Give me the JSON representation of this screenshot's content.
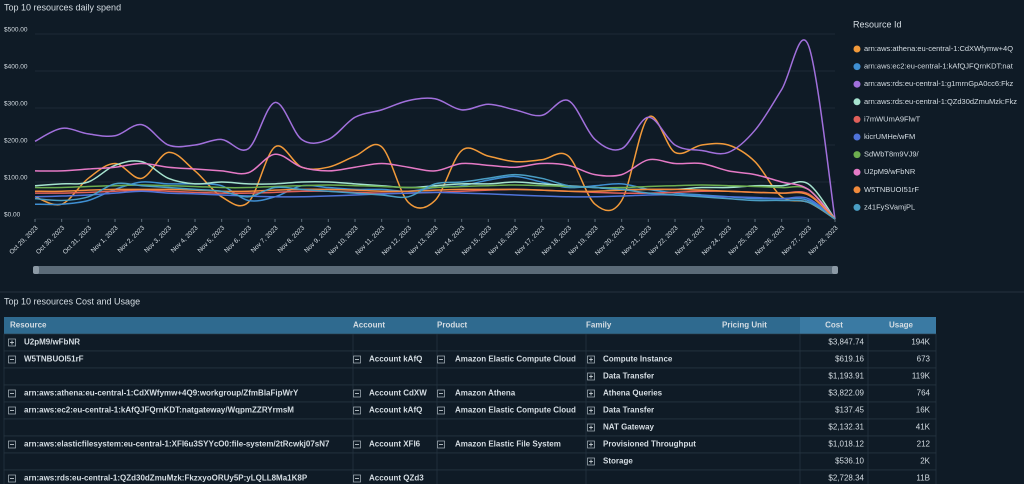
{
  "chart_data": {
    "type": "line",
    "title": "Top 10 resources daily spend",
    "legend_title": "Resource Id",
    "legend": "right",
    "categories": [
      "Oct 29, 2023",
      "Oct 30, 2023",
      "Oct 31, 2023",
      "Nov 1, 2023",
      "Nov 2, 2023",
      "Nov 3, 2023",
      "Nov 4, 2023",
      "Nov 5, 2023",
      "Nov 6, 2023",
      "Nov 7, 2023",
      "Nov 8, 2023",
      "Nov 9, 2023",
      "Nov 10, 2023",
      "Nov 11, 2023",
      "Nov 12, 2023",
      "Nov 13, 2023",
      "Nov 14, 2023",
      "Nov 15, 2023",
      "Nov 16, 2023",
      "Nov 17, 2023",
      "Nov 18, 2023",
      "Nov 19, 2023",
      "Nov 20, 2023",
      "Nov 21, 2023",
      "Nov 22, 2023",
      "Nov 23, 2023",
      "Nov 24, 2023",
      "Nov 25, 2023",
      "Nov 26, 2023",
      "Nov 27, 2023",
      "Nov 28, 2023"
    ],
    "ylim": [
      0,
      500
    ],
    "yticks": [
      {
        "value": 0,
        "label": "$0.00"
      },
      {
        "value": 100,
        "label": "$100.00"
      },
      {
        "value": 200,
        "label": "$200.00"
      },
      {
        "value": 300,
        "label": "$300.00"
      },
      {
        "value": 400,
        "label": "$400.00"
      },
      {
        "value": 500,
        "label": "$500.00"
      }
    ],
    "grid": true,
    "series": [
      {
        "name": "arn:aws:athena:eu-central-1:CdXWfymw+4Q",
        "color": "#f29a3a",
        "values": [
          60,
          40,
          110,
          150,
          110,
          180,
          130,
          60,
          45,
          195,
          140,
          140,
          170,
          195,
          45,
          50,
          185,
          170,
          155,
          160,
          170,
          40,
          50,
          275,
          180,
          200,
          200,
          155,
          60,
          45,
          0
        ]
      },
      {
        "name": "arn:aws:ec2:eu-central-1:kAfQJFQrnKDT:nat",
        "color": "#3f8fd2",
        "values": [
          40,
          40,
          50,
          80,
          100,
          95,
          95,
          90,
          50,
          60,
          90,
          85,
          80,
          80,
          75,
          85,
          90,
          105,
          115,
          100,
          85,
          90,
          95,
          80,
          70,
          65,
          60,
          55,
          55,
          50,
          0
        ]
      },
      {
        "name": "arn:aws:rds:eu-central-1:g1mrnGpA0cc6:Fkz",
        "color": "#a170dc",
        "values": [
          210,
          245,
          230,
          225,
          255,
          200,
          200,
          215,
          190,
          315,
          215,
          215,
          275,
          295,
          320,
          325,
          295,
          310,
          295,
          280,
          320,
          215,
          190,
          275,
          200,
          185,
          180,
          240,
          350,
          470,
          0
        ]
      },
      {
        "name": "arn:aws:rds:eu-central-1:QZd30dZmuMzk:Fkz",
        "color": "#a6e3cf",
        "values": [
          90,
          95,
          100,
          145,
          155,
          110,
          95,
          100,
          95,
          95,
          100,
          100,
          95,
          90,
          85,
          90,
          95,
          95,
          100,
          95,
          90,
          85,
          80,
          80,
          80,
          85,
          85,
          90,
          90,
          95,
          0
        ]
      },
      {
        "name": "i7mWUmA9FlwT",
        "color": "#e0605a",
        "values": [
          70,
          70,
          72,
          75,
          78,
          75,
          72,
          70,
          70,
          72,
          75,
          75,
          72,
          70,
          70,
          72,
          75,
          78,
          80,
          78,
          75,
          72,
          70,
          70,
          72,
          75,
          75,
          72,
          70,
          68,
          0
        ]
      },
      {
        "name": "kicrUMHe/wFM",
        "color": "#4f73d9",
        "values": [
          60,
          62,
          65,
          70,
          75,
          70,
          68,
          65,
          62,
          60,
          60,
          62,
          65,
          68,
          70,
          72,
          70,
          68,
          65,
          62,
          60,
          60,
          62,
          65,
          65,
          62,
          60,
          58,
          55,
          55,
          0
        ]
      },
      {
        "name": "SdWbT8m9VJ9/",
        "color": "#6dae4f",
        "values": [
          85,
          85,
          88,
          90,
          92,
          90,
          88,
          85,
          85,
          88,
          90,
          92,
          90,
          88,
          85,
          85,
          88,
          90,
          92,
          90,
          88,
          85,
          85,
          88,
          90,
          92,
          90,
          88,
          85,
          80,
          0
        ]
      },
      {
        "name": "U2pM9/wFbNR",
        "color": "#e57ac6",
        "values": [
          130,
          130,
          135,
          140,
          150,
          140,
          135,
          130,
          125,
          175,
          140,
          130,
          140,
          150,
          140,
          130,
          150,
          145,
          140,
          150,
          145,
          120,
          120,
          160,
          150,
          150,
          130,
          120,
          100,
          80,
          0
        ]
      },
      {
        "name": "W5TNBUOI51rF",
        "color": "#f08a3c",
        "values": [
          75,
          75,
          78,
          80,
          80,
          80,
          78,
          75,
          75,
          78,
          80,
          80,
          78,
          75,
          75,
          78,
          80,
          80,
          80,
          78,
          75,
          75,
          78,
          80,
          80,
          78,
          75,
          72,
          70,
          65,
          0
        ]
      },
      {
        "name": "z41FySVamjPL",
        "color": "#4a9ec4",
        "values": [
          55,
          50,
          60,
          95,
          90,
          85,
          80,
          75,
          60,
          85,
          80,
          75,
          70,
          65,
          60,
          95,
          100,
          110,
          120,
          110,
          90,
          85,
          80,
          70,
          65,
          60,
          55,
          50,
          50,
          45,
          0
        ]
      }
    ]
  },
  "table": {
    "title": "Top 10 resources Cost and Usage",
    "columns": [
      "Resource",
      "Account",
      "Product",
      "Family",
      "Pricing Unit",
      "Cost",
      "Usage"
    ],
    "rows": [
      [
        "U2pM9/wFbNR",
        null,
        null,
        null,
        null,
        "$3,847.74",
        "194K"
      ],
      [
        "W5TNBUOI51rF",
        "Account kAfQ",
        "Amazon Elastic Compute Cloud",
        "Compute Instance",
        null,
        "$619.16",
        "673"
      ],
      [
        null,
        null,
        null,
        "Data Transfer",
        null,
        "$1,193.91",
        "119K"
      ],
      [
        "arn:aws:athena:eu-central-1:CdXWfymw+4Q9:workgroup/ZfmBlaFipWrY",
        "Account CdXW",
        "Amazon Athena",
        "Athena Queries",
        null,
        "$3,822.09",
        "764"
      ],
      [
        "arn:aws:ec2:eu-central-1:kAfQJFQrnKDT:natgateway/WqpmZZRYrmsM",
        "Account kAfQ",
        "Amazon Elastic Compute Cloud",
        "Data Transfer",
        null,
        "$137.45",
        "16K"
      ],
      [
        null,
        null,
        null,
        "NAT Gateway",
        null,
        "$2,132.31",
        "41K"
      ],
      [
        "arn:aws:elasticfilesystem:eu-central-1:XFI6u3SYYcO0:file-system/2tRcwkj07sN7",
        "Account XFI6",
        "Amazon Elastic File System",
        "Provisioned Throughput",
        null,
        "$1,018.12",
        "212"
      ],
      [
        null,
        null,
        null,
        "Storage",
        null,
        "$536.10",
        "2K"
      ],
      [
        "arn:aws:rds:eu-central-1:QZd30dZmuMzk:FkzxyoORUy5P:yLQLL8Ma1K8P",
        "Account QZd3",
        null,
        null,
        null,
        "$2,728.34",
        "11B"
      ]
    ]
  }
}
